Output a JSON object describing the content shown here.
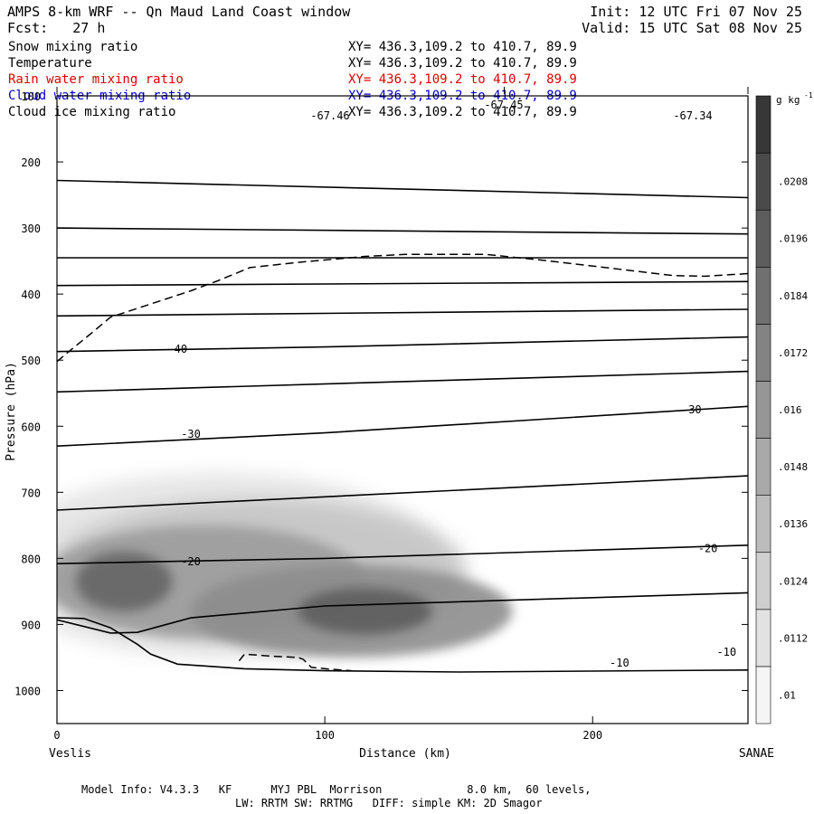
{
  "header": {
    "title": "AMPS 8-km WRF -- Qn Maud Land Coast window",
    "fcst": "Fcst:   27 h",
    "init": "Init: 12 UTC Fri 07 Nov 25",
    "valid": "Valid: 15 UTC Sat 08 Nov 25"
  },
  "variables": [
    {
      "name": "Snow mixing ratio",
      "xy": "XY= 436.3,109.2 to 410.7, 89.9",
      "color": "#000000"
    },
    {
      "name": "Temperature",
      "xy": "XY= 436.3,109.2 to 410.7, 89.9",
      "color": "#000000"
    },
    {
      "name": "Rain water mixing ratio",
      "xy": "XY= 436.3,109.2 to 410.7, 89.9",
      "color": "#e00000"
    },
    {
      "name": "Cloud water mixing ratio",
      "xy": "XY= 436.3,109.2 to 410.7, 89.9",
      "color": "#0000cc"
    },
    {
      "name": "Cloud ice mixing ratio",
      "xy": "XY= 436.3,109.2 to 410.7, 89.9",
      "color": "#000000"
    }
  ],
  "footer": {
    "line1": "Model Info: V4.3.3   KF      MYJ PBL  Morrison             8.0 km,  60 levels,",
    "line2": "LW: RRTM SW: RRTMG   DIFF: simple KM: 2D Smagor"
  },
  "chart_data": {
    "type": "contour",
    "xlabel": "Distance (km)",
    "ylabel": "Pressure (hPa)",
    "xlim": [
      0,
      258
    ],
    "ylim": [
      1050,
      100
    ],
    "x_ticks": [
      0,
      100,
      200
    ],
    "y_ticks": [
      100,
      200,
      300,
      400,
      500,
      600,
      700,
      800,
      900,
      1000
    ],
    "x_endpoints": {
      "left": "Veslis",
      "right": "SANAE"
    },
    "top_labels": [
      {
        "x": 0,
        "text": "-67.46"
      },
      {
        "x": 167,
        "text": "-67.45"
      },
      {
        "x": 258,
        "text": "-67.34"
      }
    ],
    "colorbar": {
      "unit_label": "g kg",
      "unit_exp": "-1",
      "levels": [
        ".01",
        ".0112",
        ".0124",
        ".0136",
        ".0148",
        ".016",
        ".0172",
        ".0184",
        ".0196",
        ".0208"
      ]
    },
    "temperature_isotherms": [
      {
        "points": [
          [
            0,
            228
          ],
          [
            258,
            254
          ]
        ]
      },
      {
        "points": [
          [
            0,
            300
          ],
          [
            258,
            309
          ]
        ]
      },
      {
        "points": [
          [
            0,
            345
          ],
          [
            258,
            345
          ]
        ]
      },
      {
        "points": [
          [
            0,
            387
          ],
          [
            258,
            381
          ]
        ]
      },
      {
        "points": [
          [
            0,
            433
          ],
          [
            258,
            423
          ]
        ]
      },
      {
        "points": [
          [
            0,
            487
          ],
          [
            100,
            480
          ],
          [
            258,
            465
          ]
        ]
      },
      {
        "points": [
          [
            0,
            548
          ],
          [
            258,
            517
          ]
        ]
      },
      {
        "points": [
          [
            0,
            630
          ],
          [
            100,
            610
          ],
          [
            258,
            570
          ]
        ]
      },
      {
        "points": [
          [
            0,
            727
          ],
          [
            258,
            675
          ]
        ]
      },
      {
        "points": [
          [
            0,
            808
          ],
          [
            100,
            800
          ],
          [
            258,
            780
          ]
        ]
      },
      {
        "points": [
          [
            0,
            893
          ],
          [
            20,
            913
          ],
          [
            30,
            912
          ],
          [
            50,
            890
          ],
          [
            100,
            872
          ],
          [
            258,
            852
          ]
        ]
      },
      {
        "points": [
          [
            0,
            890
          ],
          [
            10,
            891
          ],
          [
            20,
            905
          ],
          [
            30,
            930
          ],
          [
            35,
            945
          ],
          [
            45,
            960
          ],
          [
            70,
            967
          ],
          [
            100,
            970
          ],
          [
            150,
            972
          ],
          [
            258,
            969
          ]
        ]
      }
    ],
    "temperature_labels": [
      {
        "x": 45,
        "p": 483,
        "text": "-40"
      },
      {
        "x": 50,
        "p": 612,
        "text": "-30"
      },
      {
        "x": 237,
        "p": 575,
        "text": "-30"
      },
      {
        "x": 50,
        "p": 805,
        "text": "-20"
      },
      {
        "x": 243,
        "p": 785,
        "text": "-20"
      },
      {
        "x": 210,
        "p": 958,
        "text": "-10"
      },
      {
        "x": 250,
        "p": 942,
        "text": "-10"
      }
    ],
    "dashed_contour": {
      "points": [
        [
          0,
          502
        ],
        [
          5,
          485
        ],
        [
          12,
          462
        ],
        [
          20,
          435
        ],
        [
          35,
          415
        ],
        [
          50,
          395
        ],
        [
          60,
          380
        ],
        [
          72,
          360
        ],
        [
          90,
          352
        ],
        [
          115,
          343
        ],
        [
          130,
          340
        ],
        [
          160,
          340
        ],
        [
          180,
          348
        ],
        [
          205,
          360
        ],
        [
          230,
          372
        ],
        [
          242,
          373
        ],
        [
          258,
          369
        ]
      ]
    },
    "dashed_contour_lower": {
      "points": [
        [
          68,
          955
        ],
        [
          70,
          945
        ],
        [
          80,
          948
        ],
        [
          90,
          950
        ],
        [
          92,
          953
        ],
        [
          95,
          965
        ],
        [
          103,
          968
        ],
        [
          110,
          970
        ]
      ]
    },
    "snow_shading": [
      {
        "x": 60,
        "p": 810,
        "rx": 85,
        "rp": 140,
        "value": 0.0105
      },
      {
        "x": 75,
        "p": 820,
        "rx": 78,
        "rp": 110,
        "value": 0.0125
      },
      {
        "x": 55,
        "p": 835,
        "rx": 60,
        "rp": 85,
        "value": 0.015
      },
      {
        "x": 110,
        "p": 880,
        "rx": 60,
        "rp": 70,
        "value": 0.016
      },
      {
        "x": 25,
        "p": 835,
        "rx": 18,
        "rp": 45,
        "value": 0.0185
      },
      {
        "x": 115,
        "p": 880,
        "rx": 25,
        "rp": 35,
        "value": 0.019
      }
    ],
    "terrain": {
      "points": [
        [
          0,
          1050
        ],
        [
          0,
          885
        ],
        [
          10,
          890
        ],
        [
          20,
          905
        ],
        [
          30,
          930
        ],
        [
          35,
          945
        ],
        [
          45,
          960
        ],
        [
          70,
          967
        ],
        [
          100,
          970
        ],
        [
          150,
          972
        ],
        [
          200,
          970
        ],
        [
          258,
          965
        ],
        [
          258,
          1050
        ]
      ]
    }
  }
}
